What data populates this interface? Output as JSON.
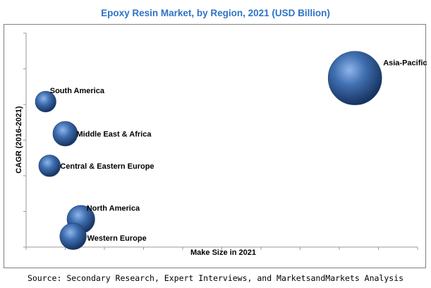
{
  "chart_data": {
    "type": "scatter",
    "title": "Epoxy Resin Market, by Region, 2021 (USD Billion)",
    "xlabel": "Make Size in 2021",
    "ylabel": "CAGR (2016-2021)",
    "x_tick_labels": [],
    "y_tick_labels": [],
    "grid": false,
    "legend": "none",
    "bubble_color": "#3f6eb0",
    "points": [
      {
        "label": "Asia-Pacific",
        "x": 0.84,
        "y": 0.79,
        "size": 1.0
      },
      {
        "label": "South America",
        "x": 0.05,
        "y": 0.68,
        "size": 0.25
      },
      {
        "label": "Middle East & Africa",
        "x": 0.1,
        "y": 0.53,
        "size": 0.34
      },
      {
        "label": "Central & Eastern Europe",
        "x": 0.06,
        "y": 0.38,
        "size": 0.27
      },
      {
        "label": "North America",
        "x": 0.14,
        "y": 0.13,
        "size": 0.41
      },
      {
        "label": "Western Europe",
        "x": 0.12,
        "y": 0.05,
        "size": 0.38
      }
    ]
  },
  "source": "Source: Secondary Research, Expert Interviews, and MarketsandMarkets Analysis"
}
